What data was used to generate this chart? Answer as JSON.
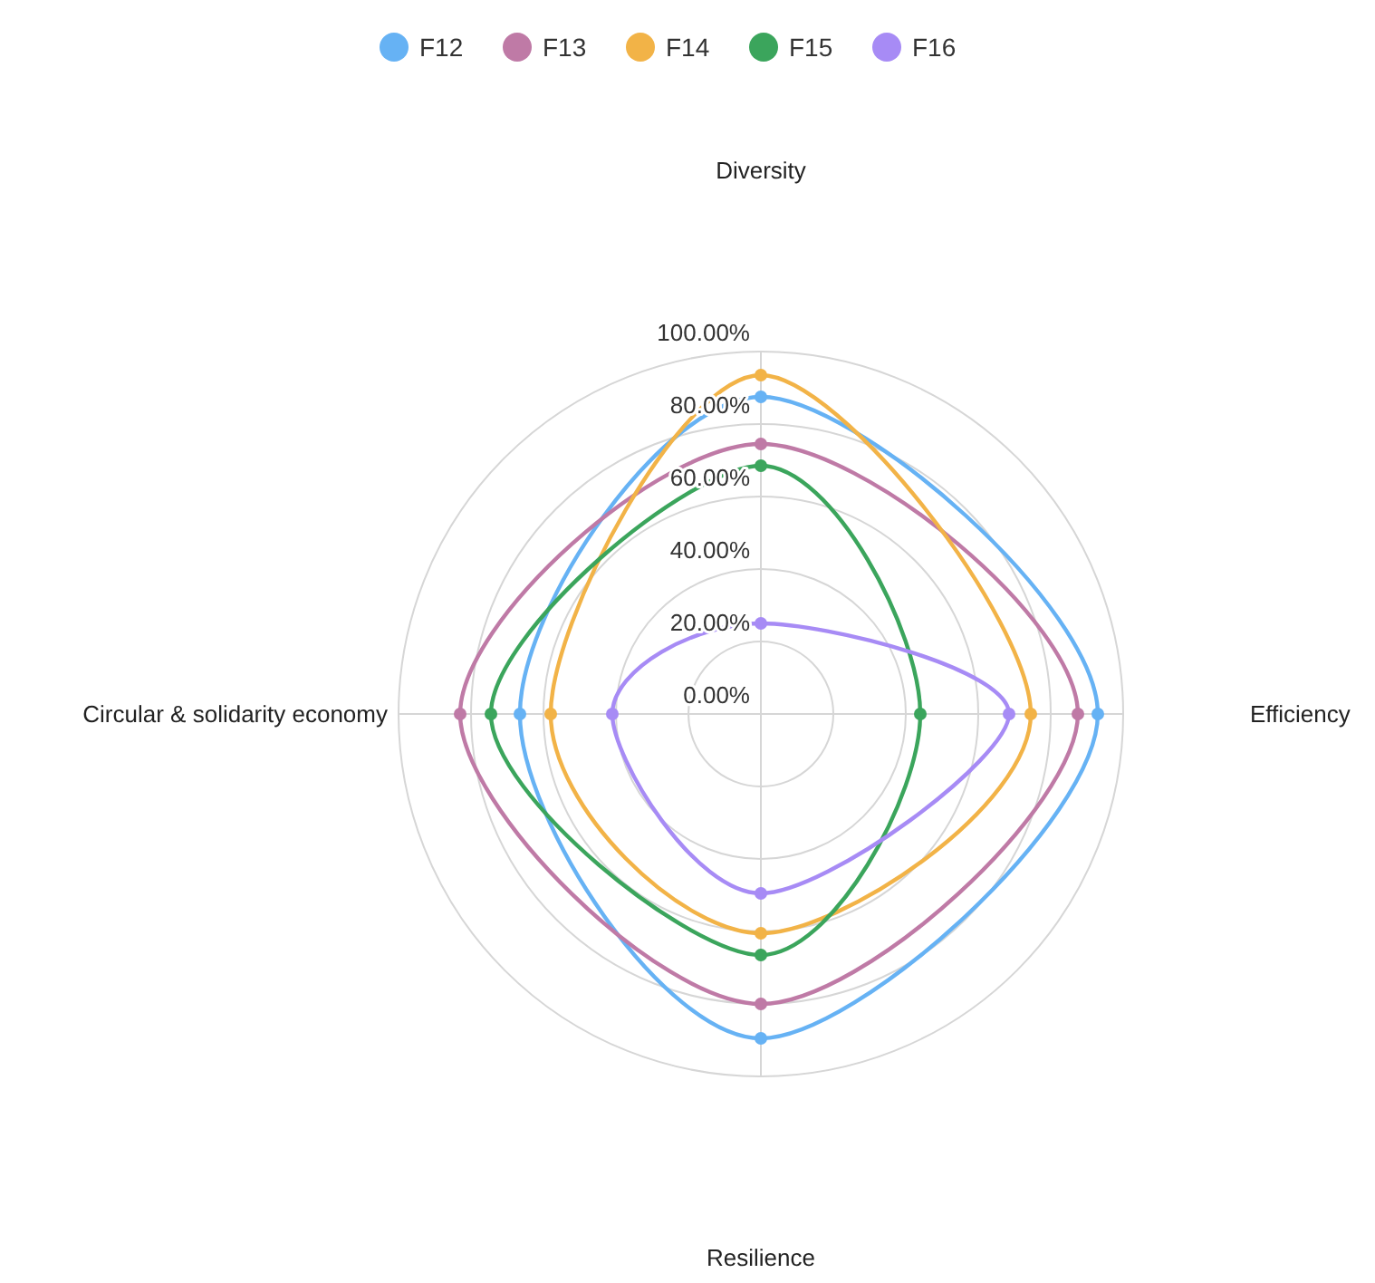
{
  "chart_data": {
    "type": "radar",
    "categories": [
      "Diversity",
      "Efficiency",
      "Resilience",
      "Circular & solidarity economy"
    ],
    "series": [
      {
        "name": "F12",
        "color": "#66b2f4",
        "values": [
          87.5,
          93,
          89.5,
          66.5
        ]
      },
      {
        "name": "F13",
        "color": "#bf7aa6",
        "values": [
          74.5,
          87.5,
          80,
          83
        ]
      },
      {
        "name": "F14",
        "color": "#f2b347",
        "values": [
          93.5,
          74.5,
          60.5,
          58
        ]
      },
      {
        "name": "F15",
        "color": "#3ba55c",
        "values": [
          68.5,
          44,
          66.5,
          74.5
        ]
      },
      {
        "name": "F16",
        "color": "#a78bf5",
        "values": [
          25,
          68.5,
          49.5,
          41
        ]
      }
    ],
    "ylim": [
      0,
      100
    ],
    "yticks": [
      {
        "value": 0,
        "label": "0.00%"
      },
      {
        "value": 20,
        "label": "20.00%"
      },
      {
        "value": 40,
        "label": "40.00%"
      },
      {
        "value": 60,
        "label": "60.00%"
      },
      {
        "value": 80,
        "label": "80.00%"
      },
      {
        "value": 100,
        "label": "100.00%"
      }
    ],
    "grid": true,
    "legend": "top",
    "marker": "circle",
    "line_style": "solid"
  }
}
